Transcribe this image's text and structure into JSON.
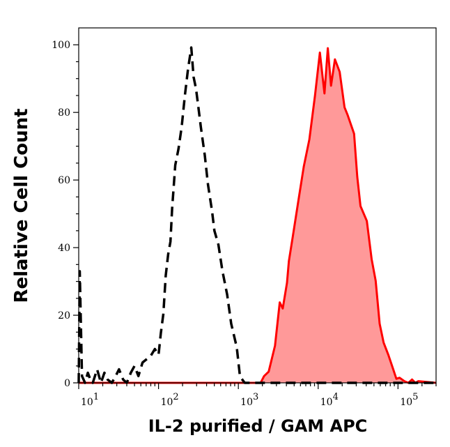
{
  "chart_data": {
    "type": "area",
    "title": "",
    "xlabel": "IL-2 purified / GAM APC",
    "ylabel": "Relative Cell Count",
    "x_scale": "log",
    "xlim": [
      10,
      300000
    ],
    "ylim": [
      0,
      105
    ],
    "grid": false,
    "legend": "none",
    "y_ticks": [
      0,
      20,
      40,
      60,
      80,
      100
    ],
    "x_ticks": [
      {
        "base": "10",
        "exp": "1",
        "value": 10
      },
      {
        "base": "10",
        "exp": "2",
        "value": 100
      },
      {
        "base": "10",
        "exp": "3",
        "value": 1000
      },
      {
        "base": "10",
        "exp": "4",
        "value": 10000
      },
      {
        "base": "10",
        "exp": "5",
        "value": 100000
      }
    ],
    "series": [
      {
        "style": "dashed",
        "color": "#000000",
        "fill": "none",
        "x": [
          10,
          10.3,
          11,
          12,
          13,
          14,
          15,
          17,
          19,
          21,
          23,
          26,
          29,
          32,
          36,
          40,
          45,
          50,
          56,
          63,
          71,
          80,
          90,
          100,
          107,
          115,
          123,
          132,
          141,
          148,
          162,
          178,
          195,
          214,
          234,
          257,
          275,
          295,
          316,
          339,
          380,
          417,
          468,
          501,
          562,
          631,
          724,
          813,
          955,
          1047,
          1202,
          1479,
          1660,
          1905,
          2138,
          3000,
          10000,
          100000,
          300000
        ],
        "y": [
          0,
          33,
          2,
          0,
          3,
          1,
          0,
          4,
          0,
          3,
          1,
          0,
          2,
          4,
          1,
          0,
          3,
          5,
          2,
          6,
          7,
          8,
          10,
          8.3,
          14.7,
          20.4,
          31.7,
          38,
          41.8,
          51.6,
          64.4,
          69.3,
          75.7,
          85,
          92.8,
          99.2,
          90.5,
          87,
          81.5,
          75.7,
          67.3,
          58.6,
          50.8,
          45,
          40.9,
          33.1,
          26.1,
          17.5,
          10.5,
          1.9,
          0,
          0,
          0,
          0,
          0,
          0,
          0,
          0,
          0
        ]
      },
      {
        "style": "solid-filled",
        "color": "#ff0000",
        "fill": "#ff9999",
        "x": [
          10,
          1900,
          1950,
          2100,
          2400,
          2880,
          3300,
          3600,
          4070,
          4300,
          4790,
          5750,
          6600,
          7760,
          9120,
          10500,
          12000,
          13200,
          14500,
          16200,
          18600,
          21400,
          23400,
          28200,
          30900,
          33900,
          40700,
          46800,
          52500,
          58900,
          66100,
          75900,
          87100,
          95500,
          104700,
          120200,
          135000,
          150000,
          165000,
          180000,
          300000
        ],
        "y": [
          0,
          0,
          0.5,
          2,
          3.3,
          11,
          23.8,
          22,
          29.6,
          36,
          43,
          55,
          64,
          72,
          85,
          97.7,
          85.6,
          99,
          87.9,
          95.7,
          92,
          81.5,
          79.2,
          73.7,
          60.9,
          52.3,
          47.9,
          36.6,
          30.2,
          17.5,
          11.9,
          8.2,
          4,
          1.2,
          1.5,
          0.5,
          0,
          1,
          0,
          0.5,
          0
        ]
      }
    ]
  }
}
